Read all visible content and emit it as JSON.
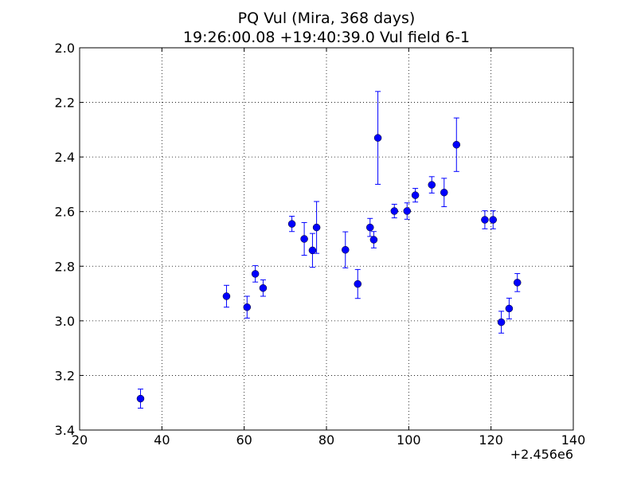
{
  "chart_data": {
    "type": "scatter",
    "title": "PQ Vul (Mira, 368 days)",
    "subtitle": "19:26:00.08 +19:40:39.0 Vul field 6-1",
    "xlabel": "",
    "ylabel": "",
    "x_offset_label": "+2.456e6",
    "xlim": [
      20,
      140
    ],
    "ylim": [
      2.0,
      3.4
    ],
    "y_inverted": true,
    "grid": true,
    "x_ticks": [
      20,
      40,
      60,
      80,
      100,
      120,
      140
    ],
    "y_ticks": [
      2.0,
      2.2,
      2.4,
      2.6,
      2.8,
      3.0,
      3.2,
      3.4
    ],
    "x_tick_labels": [
      "20",
      "40",
      "60",
      "80",
      "100",
      "120",
      "140"
    ],
    "y_tick_labels": [
      "2.0",
      "2.2",
      "2.4",
      "2.6",
      "2.8",
      "3.0",
      "3.2",
      "3.4"
    ],
    "marker_color": "#0000ff",
    "series": [
      {
        "points": [
          {
            "x": 34.8,
            "y": 3.285,
            "err": 0.035
          },
          {
            "x": 55.7,
            "y": 2.91,
            "err": 0.04
          },
          {
            "x": 60.7,
            "y": 2.95,
            "err": 0.04
          },
          {
            "x": 62.7,
            "y": 2.828,
            "err": 0.03
          },
          {
            "x": 64.6,
            "y": 2.88,
            "err": 0.03
          },
          {
            "x": 71.6,
            "y": 2.645,
            "err": 0.028
          },
          {
            "x": 74.6,
            "y": 2.7,
            "err": 0.06
          },
          {
            "x": 76.6,
            "y": 2.742,
            "err": 0.062
          },
          {
            "x": 77.6,
            "y": 2.658,
            "err": 0.095
          },
          {
            "x": 84.6,
            "y": 2.74,
            "err": 0.066
          },
          {
            "x": 87.6,
            "y": 2.865,
            "err": 0.053
          },
          {
            "x": 90.6,
            "y": 2.658,
            "err": 0.033
          },
          {
            "x": 91.5,
            "y": 2.703,
            "err": 0.03
          },
          {
            "x": 92.5,
            "y": 2.33,
            "err": 0.17
          },
          {
            "x": 96.5,
            "y": 2.598,
            "err": 0.025
          },
          {
            "x": 99.6,
            "y": 2.598,
            "err": 0.03
          },
          {
            "x": 101.6,
            "y": 2.54,
            "err": 0.025
          },
          {
            "x": 105.6,
            "y": 2.502,
            "err": 0.03
          },
          {
            "x": 108.6,
            "y": 2.53,
            "err": 0.052
          },
          {
            "x": 111.6,
            "y": 2.355,
            "err": 0.098
          },
          {
            "x": 118.5,
            "y": 2.63,
            "err": 0.033
          },
          {
            "x": 120.5,
            "y": 2.63,
            "err": 0.033
          },
          {
            "x": 122.5,
            "y": 3.005,
            "err": 0.04
          },
          {
            "x": 124.4,
            "y": 2.955,
            "err": 0.038
          },
          {
            "x": 126.4,
            "y": 2.86,
            "err": 0.033
          }
        ]
      }
    ]
  }
}
